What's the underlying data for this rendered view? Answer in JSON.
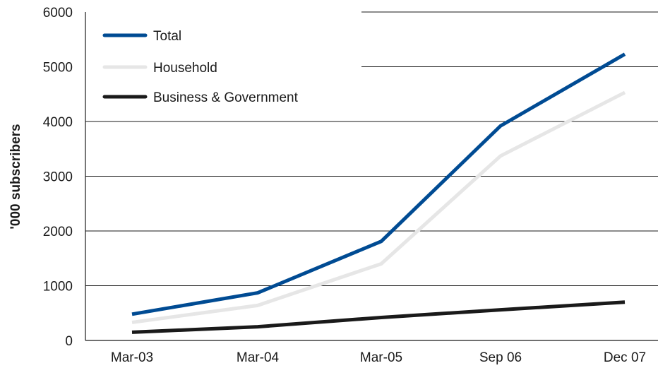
{
  "chart_data": {
    "type": "line",
    "title": "",
    "xlabel": "",
    "ylabel": "'000 subscribers",
    "categories": [
      "Mar-03",
      "Mar-04",
      "Mar-05",
      "Sep 06",
      "Dec 07"
    ],
    "ylim": [
      0,
      6000
    ],
    "yticks": [
      0,
      1000,
      2000,
      3000,
      4000,
      5000,
      6000
    ],
    "grid": "horizontal",
    "legend_position": "top-left",
    "series": [
      {
        "name": "Total",
        "color": "#004b93",
        "values": [
          480,
          870,
          1810,
          3920,
          5230
        ]
      },
      {
        "name": "Household",
        "color": "#e6e6e6",
        "values": [
          330,
          640,
          1400,
          3370,
          4530
        ]
      },
      {
        "name": "Business & Government",
        "color": "#1a1a1a",
        "values": [
          150,
          250,
          420,
          560,
          700
        ]
      }
    ]
  }
}
